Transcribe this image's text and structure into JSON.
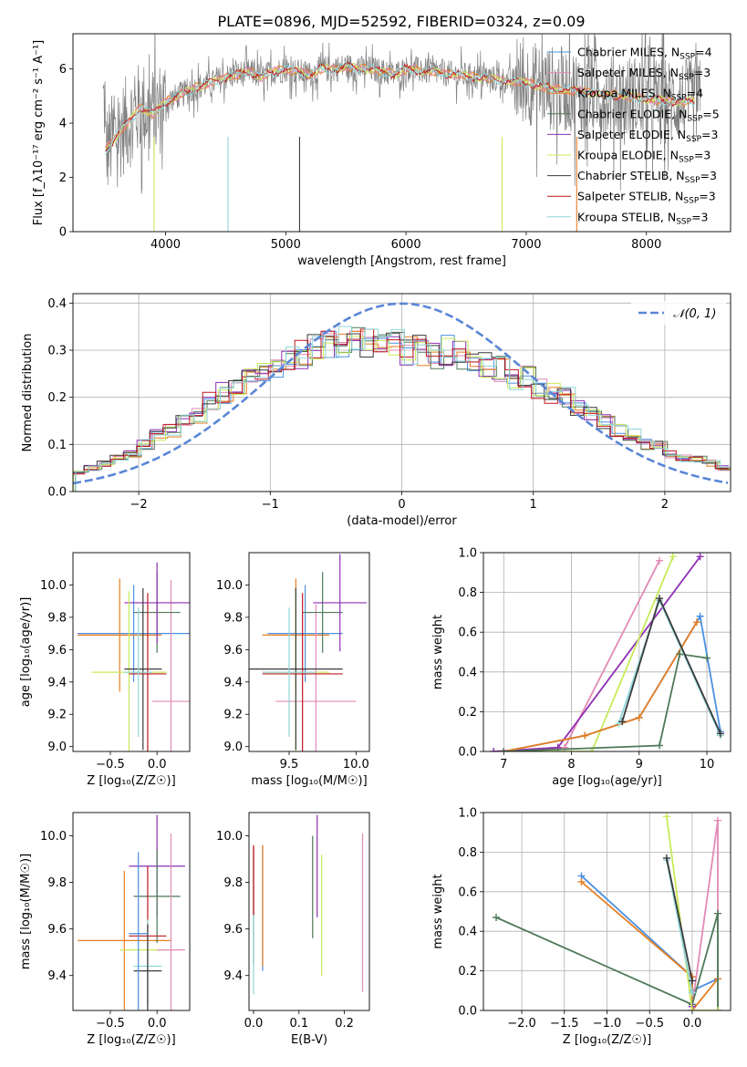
{
  "figure": {
    "title": "PLATE=0896, MJD=52592, FIBERID=0324, z=0.09"
  },
  "colors": {
    "chabrier_miles": "#4a90e2",
    "salpeter_miles": "#e28ab6",
    "kroupa_miles": "#e67e22",
    "chabrier_elodie": "#4e7a58",
    "salpeter_elodie": "#8e2fb4",
    "kroupa_elodie": "#c8ea5a",
    "chabrier_stelib": "#3a3a3a",
    "salpeter_stelib": "#c0171f",
    "kroupa_stelib": "#8fd6d8",
    "data": "#808080",
    "normal": "#5a86d6"
  },
  "chart_data": [
    {
      "id": "spectrum",
      "type": "line",
      "xlabel": "wavelength [Angstrom, rest frame]",
      "ylabel": "Flux [f_λ10⁻¹⁷ erg cm⁻² s⁻¹ A⁻¹]",
      "xlim": [
        3230,
        8700
      ],
      "ylim": [
        0,
        7.3
      ],
      "xticks": [
        4000,
        5000,
        6000,
        7000,
        8000
      ],
      "yticks": [
        0,
        2,
        4,
        6
      ],
      "legend_position": "right",
      "legend": [
        {
          "name": "Chabrier MILES, N_SSP=4",
          "color_key": "chabrier_miles"
        },
        {
          "name": "Salpeter MILES, N_SSP=3",
          "color_key": "salpeter_miles"
        },
        {
          "name": "Kroupa MILES, N_SSP=4",
          "color_key": "kroupa_miles"
        },
        {
          "name": "Chabrier ELODIE, N_SSP=5",
          "color_key": "chabrier_elodie"
        },
        {
          "name": "Salpeter ELODIE, N_SSP=3",
          "color_key": "salpeter_elodie"
        },
        {
          "name": "Kroupa ELODIE, N_SSP=3",
          "color_key": "kroupa_elodie"
        },
        {
          "name": "Chabrier STELIB, N_SSP=3",
          "color_key": "chabrier_stelib"
        },
        {
          "name": "Salpeter STELIB, N_SSP=3",
          "color_key": "salpeter_stelib"
        },
        {
          "name": "Kroupa STELIB, N_SSP=3",
          "color_key": "kroupa_stelib"
        }
      ],
      "model_continuum": [
        [
          3500,
          3.0
        ],
        [
          3600,
          3.6
        ],
        [
          3700,
          4.1
        ],
        [
          3800,
          4.6
        ],
        [
          3900,
          4.3
        ],
        [
          4000,
          4.8
        ],
        [
          4100,
          5.0
        ],
        [
          4200,
          5.2
        ],
        [
          4300,
          5.4
        ],
        [
          4400,
          5.5
        ],
        [
          4500,
          5.7
        ],
        [
          4600,
          5.8
        ],
        [
          4700,
          5.9
        ],
        [
          4800,
          5.7
        ],
        [
          4900,
          5.9
        ],
        [
          5000,
          6.0
        ],
        [
          5100,
          5.9
        ],
        [
          5200,
          5.8
        ],
        [
          5300,
          6.0
        ],
        [
          5400,
          6.0
        ],
        [
          5500,
          6.1
        ],
        [
          5600,
          6.0
        ],
        [
          5700,
          6.0
        ],
        [
          5800,
          5.9
        ],
        [
          5900,
          5.8
        ],
        [
          6000,
          6.0
        ],
        [
          6200,
          5.9
        ],
        [
          6400,
          5.8
        ],
        [
          6600,
          5.7
        ],
        [
          6800,
          5.6
        ],
        [
          7000,
          5.5
        ],
        [
          7200,
          5.3
        ],
        [
          7400,
          5.2
        ],
        [
          7600,
          5.1
        ],
        [
          7800,
          5.0
        ],
        [
          8000,
          4.9
        ],
        [
          8200,
          4.8
        ],
        [
          8400,
          4.8
        ]
      ]
    },
    {
      "id": "residuals",
      "type": "area",
      "xlabel": "(data-model)/error",
      "ylabel": "Normed distribution",
      "xlim": [
        -2.5,
        2.5
      ],
      "ylim": [
        0,
        0.42
      ],
      "xticks": [
        -2,
        -1,
        0,
        1,
        2
      ],
      "yticks": [
        0.0,
        0.1,
        0.2,
        0.3,
        0.4
      ],
      "grid": true,
      "legend": [
        {
          "name": "𝒩(0, 1)",
          "color_key": "normal"
        }
      ],
      "bin_width": 0.1,
      "bin_start": -2.5,
      "histogram_envelope": [
        0.04,
        0.04,
        0.05,
        0.06,
        0.07,
        0.07,
        0.08,
        0.09,
        0.1,
        0.11,
        0.12,
        0.13,
        0.14,
        0.15,
        0.16,
        0.17,
        0.19,
        0.2,
        0.21,
        0.22,
        0.23,
        0.24,
        0.25,
        0.26,
        0.27,
        0.28,
        0.28,
        0.29,
        0.3,
        0.31,
        0.31,
        0.32,
        0.32,
        0.33,
        0.32,
        0.32,
        0.31,
        0.32,
        0.31,
        0.3,
        0.3,
        0.31,
        0.3,
        0.29,
        0.29,
        0.3,
        0.29,
        0.28,
        0.28,
        0.27,
        0.27,
        0.26,
        0.25,
        0.24,
        0.24,
        0.23,
        0.22,
        0.22,
        0.21,
        0.2,
        0.19,
        0.18,
        0.17,
        0.16,
        0.15,
        0.14,
        0.13,
        0.12,
        0.11,
        0.1,
        0.1,
        0.09,
        0.08,
        0.08,
        0.07,
        0.07,
        0.06,
        0.06,
        0.05,
        0.05
      ]
    },
    {
      "id": "age_vs_Z",
      "type": "scatter",
      "xlabel": "Z [log₁₀(Z/Z☉)]",
      "ylabel": "age  [log₁₀(age/yr)]",
      "xlim": [
        -0.9,
        0.35
      ],
      "ylim": [
        8.97,
        10.2
      ],
      "xticks": [
        -0.5,
        0.0
      ],
      "yticks": [
        9.0,
        9.2,
        9.4,
        9.6,
        9.8,
        10.0
      ],
      "points": [
        {
          "x": -0.25,
          "y": 9.7,
          "xerr": 0.6,
          "yerr": 0.3,
          "color_key": "chabrier_miles"
        },
        {
          "x": -0.4,
          "y": 9.69,
          "xerr": 0.45,
          "yerr": 0.35,
          "color_key": "kroupa_miles"
        },
        {
          "x": 0.15,
          "y": 9.28,
          "xerr": 0.2,
          "yerr": 0.75,
          "color_key": "salpeter_miles"
        },
        {
          "x": 0.0,
          "y": 9.83,
          "xerr": 0.25,
          "yerr": 0.25,
          "color_key": "chabrier_elodie"
        },
        {
          "x": 0.0,
          "y": 9.89,
          "xerr": 0.35,
          "yerr": 0.25,
          "color_key": "salpeter_elodie"
        },
        {
          "x": -0.3,
          "y": 9.46,
          "xerr": 0.4,
          "yerr": 0.5,
          "color_key": "kroupa_elodie"
        },
        {
          "x": -0.15,
          "y": 9.48,
          "xerr": 0.2,
          "yerr": 0.5,
          "color_key": "chabrier_stelib"
        },
        {
          "x": -0.1,
          "y": 9.45,
          "xerr": 0.2,
          "yerr": 0.5,
          "color_key": "salpeter_stelib"
        },
        {
          "x": -0.2,
          "y": 9.46,
          "xerr": 0.15,
          "yerr": 0.4,
          "color_key": "kroupa_stelib"
        }
      ]
    },
    {
      "id": "age_vs_mass",
      "type": "scatter",
      "xlabel": "mass [log₁₀(M/M☉)]",
      "ylabel": "",
      "xlim": [
        9.2,
        10.1
      ],
      "ylim": [
        8.97,
        10.2
      ],
      "xticks": [
        9.5,
        10.0
      ],
      "yticks": [
        9.0,
        9.2,
        9.4,
        9.6,
        9.8,
        10.0
      ],
      "points": [
        {
          "x": 9.62,
          "y": 9.7,
          "xerr": 0.28,
          "yerr": 0.3,
          "color_key": "chabrier_miles"
        },
        {
          "x": 9.55,
          "y": 9.69,
          "xerr": 0.25,
          "yerr": 0.35,
          "color_key": "kroupa_miles"
        },
        {
          "x": 9.7,
          "y": 9.28,
          "xerr": 0.3,
          "yerr": 0.6,
          "color_key": "salpeter_miles"
        },
        {
          "x": 9.75,
          "y": 9.83,
          "xerr": 0.15,
          "yerr": 0.25,
          "color_key": "chabrier_elodie"
        },
        {
          "x": 9.88,
          "y": 9.89,
          "xerr": 0.2,
          "yerr": 0.3,
          "color_key": "salpeter_elodie"
        },
        {
          "x": 9.55,
          "y": 9.46,
          "xerr": 0.25,
          "yerr": 0.5,
          "color_key": "kroupa_elodie"
        },
        {
          "x": 9.55,
          "y": 9.48,
          "xerr": 0.35,
          "yerr": 0.5,
          "color_key": "chabrier_stelib"
        },
        {
          "x": 9.6,
          "y": 9.45,
          "xerr": 0.3,
          "yerr": 0.5,
          "color_key": "salpeter_stelib"
        },
        {
          "x": 9.5,
          "y": 9.46,
          "xerr": 0.2,
          "yerr": 0.4,
          "color_key": "kroupa_stelib"
        }
      ]
    },
    {
      "id": "weight_vs_age",
      "type": "line",
      "xlabel": "age  [log₁₀(age/yr)]",
      "ylabel": "mass weight",
      "xlim": [
        6.7,
        10.35
      ],
      "ylim": [
        0,
        1.0
      ],
      "xticks": [
        7,
        8,
        9,
        10
      ],
      "yticks": [
        0.0,
        0.2,
        0.4,
        0.6,
        0.8,
        1.0
      ],
      "grid": true,
      "series": [
        {
          "color_key": "salpeter_miles",
          "x": [
            7.0,
            7.9,
            9.3
          ],
          "y": [
            0.0,
            0.02,
            0.96
          ]
        },
        {
          "color_key": "salpeter_elodie",
          "x": [
            6.85,
            7.8,
            9.9
          ],
          "y": [
            0.0,
            0.02,
            0.98
          ]
        },
        {
          "color_key": "kroupa_elodie",
          "x": [
            7.0,
            8.3,
            9.5
          ],
          "y": [
            0.0,
            0.0,
            0.98
          ]
        },
        {
          "color_key": "chabrier_miles",
          "x": [
            7.0,
            8.2,
            9.0,
            9.9,
            10.2
          ],
          "y": [
            0.0,
            0.08,
            0.17,
            0.68,
            0.1
          ]
        },
        {
          "color_key": "kroupa_miles",
          "x": [
            7.0,
            8.2,
            9.0,
            9.85
          ],
          "y": [
            0.0,
            0.08,
            0.17,
            0.65
          ]
        },
        {
          "color_key": "chabrier_elodie",
          "x": [
            7.0,
            9.3,
            9.6,
            10.0
          ],
          "y": [
            0.0,
            0.03,
            0.49,
            0.47
          ]
        },
        {
          "color_key": "kroupa_stelib",
          "x": [
            8.7,
            9.3,
            10.2
          ],
          "y": [
            0.14,
            0.76,
            0.08
          ]
        },
        {
          "color_key": "chabrier_stelib",
          "x": [
            8.75,
            9.3,
            10.2
          ],
          "y": [
            0.15,
            0.77,
            0.09
          ]
        }
      ]
    },
    {
      "id": "mass_vs_Z",
      "type": "scatter",
      "xlabel": "Z [log₁₀(Z/Z☉)]",
      "ylabel": "mass [log₁₀(M/M☉)]",
      "xlim": [
        -0.9,
        0.35
      ],
      "ylim": [
        9.25,
        10.1
      ],
      "xticks": [
        -0.5,
        0.0
      ],
      "yticks": [
        9.4,
        9.6,
        9.8,
        10.0
      ],
      "points": [
        {
          "x": -0.35,
          "y": 9.55,
          "xerr": 0.5,
          "yerr": 0.3,
          "color_key": "kroupa_miles"
        },
        {
          "x": 0.0,
          "y": 9.87,
          "xerr": 0.3,
          "yerr": 0.22,
          "color_key": "salpeter_elodie"
        },
        {
          "x": 0.0,
          "y": 9.74,
          "xerr": 0.25,
          "yerr": 0.2,
          "color_key": "chabrier_elodie"
        },
        {
          "x": -0.1,
          "y": 9.57,
          "xerr": 0.2,
          "yerr": 0.3,
          "color_key": "salpeter_stelib"
        },
        {
          "x": -0.1,
          "y": 9.51,
          "xerr": 0.3,
          "yerr": 0.1,
          "color_key": "kroupa_elodie"
        },
        {
          "x": 0.15,
          "y": 9.51,
          "xerr": 0.15,
          "yerr": 0.5,
          "color_key": "salpeter_miles"
        },
        {
          "x": -0.1,
          "y": 9.44,
          "xerr": 0.15,
          "yerr": 0.2,
          "color_key": "kroupa_stelib"
        },
        {
          "x": -0.1,
          "y": 9.42,
          "xerr": 0.15,
          "yerr": 0.2,
          "color_key": "chabrier_stelib"
        },
        {
          "x": -0.2,
          "y": 9.58,
          "xerr": 0.1,
          "yerr": 0.35,
          "color_key": "chabrier_miles"
        }
      ]
    },
    {
      "id": "mass_vs_ebv",
      "type": "scatter",
      "xlabel": "E(B-V)",
      "ylabel": "",
      "xlim": [
        -0.01,
        0.255
      ],
      "ylim": [
        9.25,
        10.1
      ],
      "xticks": [
        0.0,
        0.1,
        0.2
      ],
      "yticks": [
        9.4,
        9.6,
        9.8,
        10.0
      ],
      "points": [
        {
          "x": 0.0,
          "y": 9.7,
          "yerr": 0.25,
          "color_key": "chabrier_stelib"
        },
        {
          "x": 0.0,
          "y": 9.62,
          "yerr": 0.3,
          "color_key": "kroupa_stelib"
        },
        {
          "x": 0.0,
          "y": 9.81,
          "yerr": 0.15,
          "color_key": "salpeter_stelib"
        },
        {
          "x": 0.02,
          "y": 9.69,
          "yerr": 0.27,
          "color_key": "chabrier_miles"
        },
        {
          "x": 0.02,
          "y": 9.7,
          "yerr": 0.26,
          "color_key": "kroupa_miles"
        },
        {
          "x": 0.13,
          "y": 9.78,
          "yerr": 0.22,
          "color_key": "chabrier_elodie"
        },
        {
          "x": 0.14,
          "y": 9.87,
          "yerr": 0.22,
          "color_key": "salpeter_elodie"
        },
        {
          "x": 0.15,
          "y": 9.66,
          "yerr": 0.26,
          "color_key": "kroupa_elodie"
        },
        {
          "x": 0.24,
          "y": 9.67,
          "yerr": 0.34,
          "color_key": "salpeter_miles"
        }
      ]
    },
    {
      "id": "weight_vs_Z",
      "type": "line",
      "xlabel": "Z [log₁₀(Z/Z☉)]",
      "ylabel": "mass weight",
      "xlim": [
        -2.45,
        0.45
      ],
      "ylim": [
        0,
        1.0
      ],
      "xticks": [
        -2.0,
        -1.5,
        -1.0,
        -0.5,
        0.0
      ],
      "yticks": [
        0.0,
        0.2,
        0.4,
        0.6,
        0.8,
        1.0
      ],
      "grid": true,
      "series": [
        {
          "color_key": "chabrier_miles",
          "x": [
            -1.3,
            0.0,
            0.0,
            0.3
          ],
          "y": [
            0.68,
            0.17,
            0.1,
            0.16
          ]
        },
        {
          "color_key": "kroupa_miles",
          "x": [
            -1.3,
            0.0,
            0.0,
            0.3
          ],
          "y": [
            0.65,
            0.17,
            0.0,
            0.16
          ]
        },
        {
          "color_key": "salpeter_miles",
          "x": [
            0.0,
            0.3,
            0.3
          ],
          "y": [
            0.02,
            0.96,
            0.0
          ]
        },
        {
          "color_key": "chabrier_elodie",
          "x": [
            -2.3,
            0.0,
            0.3,
            0.3
          ],
          "y": [
            0.47,
            0.03,
            0.49,
            0.0
          ]
        },
        {
          "color_key": "salpeter_elodie",
          "x": [
            0.0,
            0.0
          ],
          "y": [
            0.0,
            0.02
          ]
        },
        {
          "color_key": "kroupa_elodie",
          "x": [
            -0.3,
            0.0,
            0.3
          ],
          "y": [
            0.98,
            0.0,
            0.0
          ]
        },
        {
          "color_key": "kroupa_stelib",
          "x": [
            -0.3,
            0.0
          ],
          "y": [
            0.76,
            0.09
          ]
        },
        {
          "color_key": "chabrier_stelib",
          "x": [
            -0.3,
            0.0
          ],
          "y": [
            0.77,
            0.15
          ]
        }
      ]
    }
  ]
}
